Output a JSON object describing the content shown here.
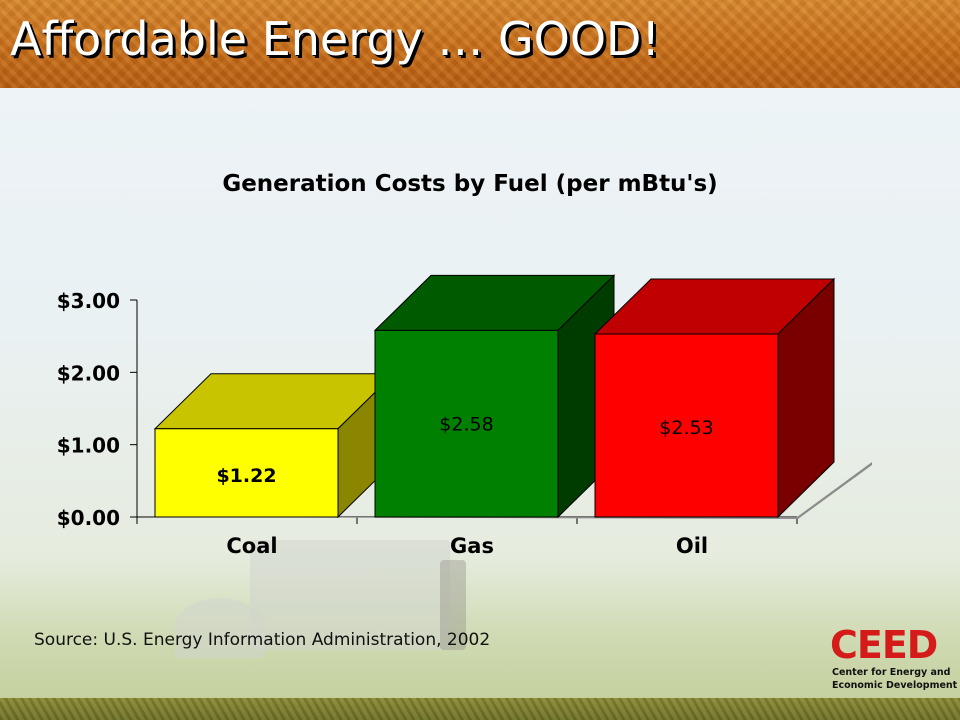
{
  "slide": {
    "title": "Affordable Energy … GOOD!",
    "source": "Source: U.S. Energy Information Administration, 2002"
  },
  "logo": {
    "word": "CEED",
    "line1": "Center for Energy and",
    "line2": "Economic Development",
    "color": "#d51a1a"
  },
  "chart_data": {
    "type": "bar",
    "title": "Generation Costs by Fuel (per mBtu's)",
    "xlabel": "",
    "ylabel": "",
    "categories": [
      "Coal",
      "Gas",
      "Oil"
    ],
    "values": [
      1.22,
      2.58,
      2.53
    ],
    "data_labels": [
      "$1.22",
      "$2.58",
      "$2.53"
    ],
    "ylim": [
      0,
      3
    ],
    "yticks": [
      0,
      1,
      2,
      3
    ],
    "ytick_labels": [
      "$0.00",
      "$1.00",
      "$2.00",
      "$3.00"
    ],
    "grid": false,
    "three_d": true,
    "colors": {
      "Coal": {
        "front": "#ffff00",
        "top": "#c8c400",
        "side": "#8a8600"
      },
      "Gas": {
        "front": "#008000",
        "top": "#005a00",
        "side": "#003c00"
      },
      "Oil": {
        "front": "#ff0000",
        "top": "#c00000",
        "side": "#7a0000"
      }
    },
    "floor_color": "#8c8c8c"
  }
}
